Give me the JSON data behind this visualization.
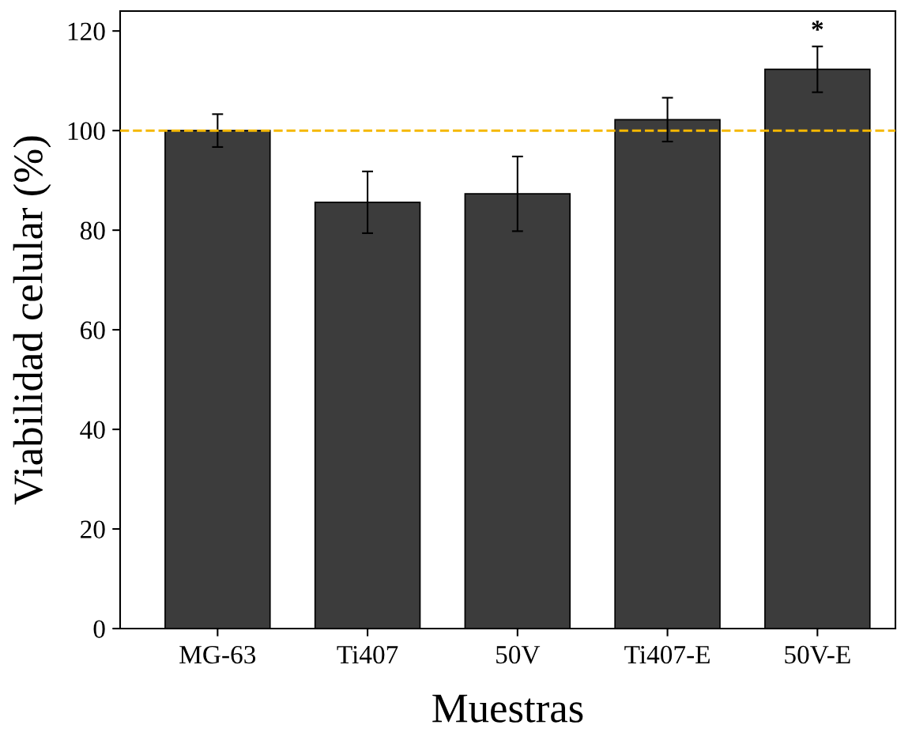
{
  "chart_data": {
    "type": "bar",
    "xlabel": "Muestras",
    "ylabel": "Viabilidad celular (%)",
    "categories": [
      "MG-63",
      "Ti407",
      "50V",
      "Ti407-E",
      "50V-E"
    ],
    "values": [
      100,
      85.6,
      87.3,
      102.2,
      112.3
    ],
    "errors": [
      3.3,
      6.2,
      7.5,
      4.4,
      4.6
    ],
    "color": "#3c3c3c",
    "ylim": [
      0,
      124
    ],
    "yticks": [
      0,
      20,
      40,
      60,
      80,
      100,
      120
    ],
    "ref_lines": [
      {
        "axis": "y",
        "value": 100,
        "color": "#f5b800",
        "line_style": "dashed"
      }
    ],
    "annotations": [
      {
        "text": "*",
        "x": "50V-E",
        "y": 117
      }
    ],
    "grid": false,
    "legend": false
  }
}
